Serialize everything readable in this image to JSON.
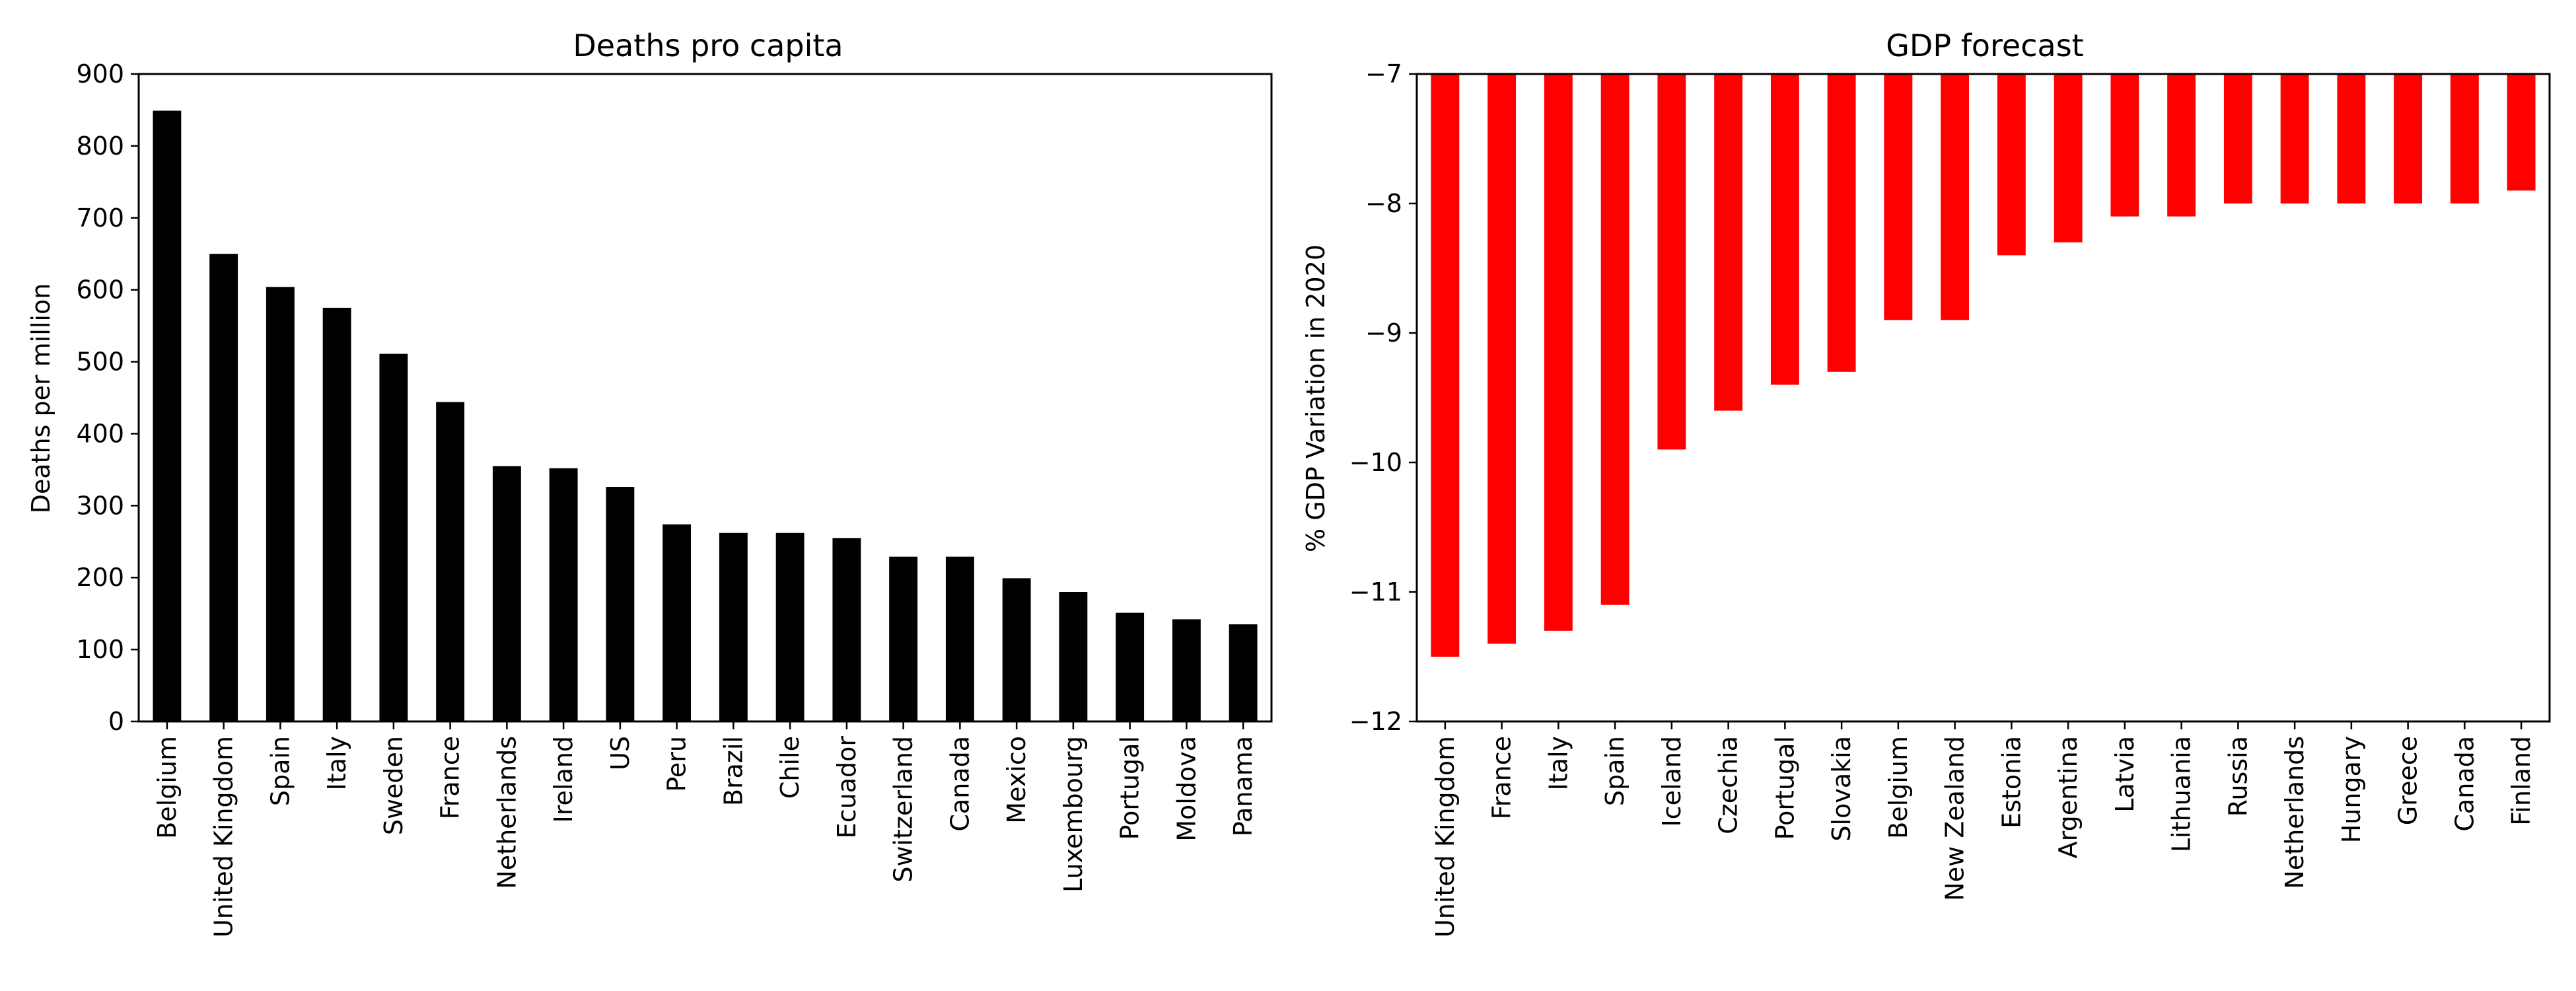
{
  "chart_data": [
    {
      "type": "bar",
      "title": "Deaths pro capita",
      "xlabel": "",
      "ylabel": "Deaths per million",
      "ylim": [
        0,
        900
      ],
      "yticks": [
        0,
        100,
        200,
        300,
        400,
        500,
        600,
        700,
        800,
        900
      ],
      "color": "#000000",
      "grid": false,
      "categories": [
        "Belgium",
        "United Kingdom",
        "Spain",
        "Italy",
        "Sweden",
        "France",
        "Netherlands",
        "Ireland",
        "US",
        "Peru",
        "Brazil",
        "Chile",
        "Ecuador",
        "Switzerland",
        "Canada",
        "Mexico",
        "Luxembourg",
        "Portugal",
        "Moldova",
        "Panama"
      ],
      "values": [
        849,
        650,
        604,
        575,
        511,
        444,
        355,
        352,
        326,
        274,
        262,
        262,
        255,
        229,
        229,
        199,
        180,
        151,
        142,
        135
      ]
    },
    {
      "type": "bar",
      "title": "GDP forecast",
      "xlabel": "",
      "ylabel": "% GDP Variation in 2020",
      "ylim": [
        -12,
        -7
      ],
      "yticks": [
        -12,
        -11,
        -10,
        -9,
        -8,
        -7
      ],
      "color": "#ff0000",
      "grid": false,
      "categories": [
        "United Kingdom",
        "France",
        "Italy",
        "Spain",
        "Iceland",
        "Czechia",
        "Portugal",
        "Slovakia",
        "Belgium",
        "New Zealand",
        "Estonia",
        "Argentina",
        "Latvia",
        "Lithuania",
        "Russia",
        "Netherlands",
        "Hungary",
        "Greece",
        "Canada",
        "Finland"
      ],
      "values": [
        -11.5,
        -11.4,
        -11.3,
        -11.1,
        -9.9,
        -9.6,
        -9.4,
        -9.3,
        -8.9,
        -8.9,
        -8.4,
        -8.3,
        -8.1,
        -8.1,
        -8.0,
        -8.0,
        -8.0,
        -8.0,
        -8.0,
        -7.9
      ]
    }
  ]
}
